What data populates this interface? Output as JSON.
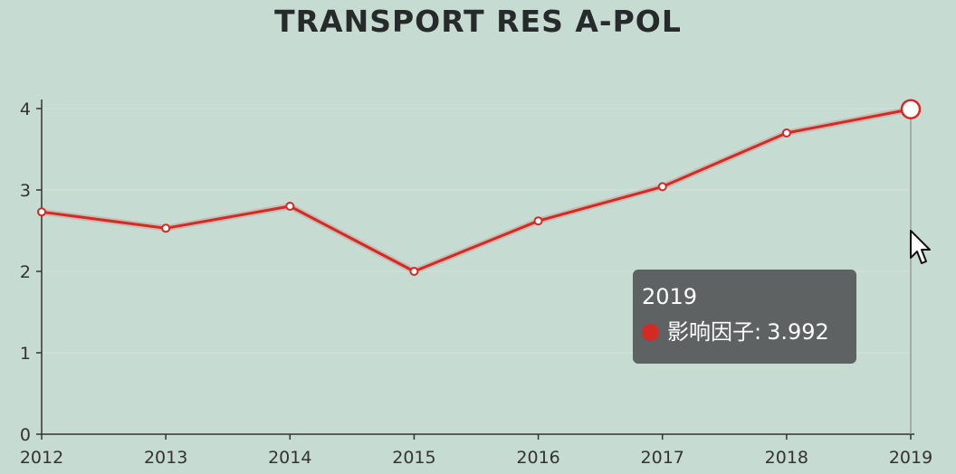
{
  "title": "TRANSPORT RES A-POL",
  "colors": {
    "background": "#c6dbd2",
    "series": "#d42a24",
    "tooltip_bg": "#5f6263"
  },
  "chart_data": {
    "type": "line",
    "title": "TRANSPORT RES A-POL",
    "x": [
      "2012",
      "2013",
      "2014",
      "2015",
      "2016",
      "2017",
      "2018",
      "2019"
    ],
    "series": [
      {
        "name": "影响因子",
        "values": [
          2.73,
          2.53,
          2.8,
          2.0,
          2.62,
          3.04,
          3.7,
          3.992
        ]
      }
    ],
    "ylim": [
      0,
      4
    ],
    "yticks": [
      "0",
      "1",
      "2",
      "3",
      "4"
    ],
    "grid": true,
    "highlight_index": 7
  },
  "tooltip": {
    "title": "2019",
    "series_name": "影响因子:",
    "value": "3.992"
  },
  "cursor_icon": "mouse-pointer-icon"
}
